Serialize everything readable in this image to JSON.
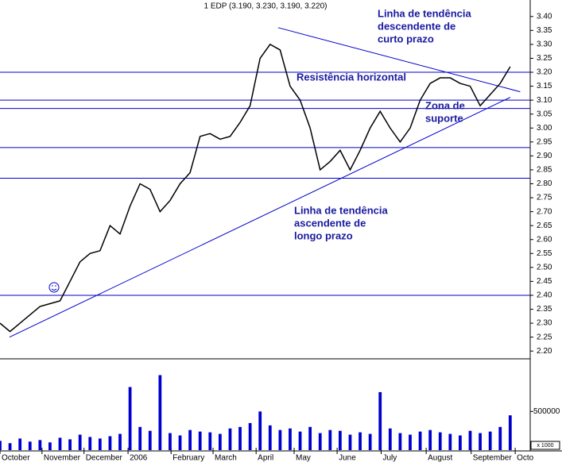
{
  "chart_data": {
    "type": "line",
    "title": "1 EDP (3.190, 3.230, 3.190, 3.220)",
    "color": "#000000",
    "values": [
      2.3,
      2.27,
      2.3,
      2.33,
      2.36,
      2.37,
      2.38,
      2.45,
      2.52,
      2.55,
      2.56,
      2.65,
      2.62,
      2.72,
      2.8,
      2.78,
      2.7,
      2.74,
      2.8,
      2.84,
      2.97,
      2.98,
      2.96,
      2.97,
      3.02,
      3.08,
      3.25,
      3.3,
      3.28,
      3.15,
      3.1,
      3.0,
      2.85,
      2.88,
      2.92,
      2.85,
      2.92,
      3.0,
      3.06,
      3.0,
      2.95,
      3.0,
      3.1,
      3.16,
      3.18,
      3.18,
      3.16,
      3.15,
      3.08,
      3.12,
      3.16,
      3.22
    ],
    "volume": {
      "color": "#0000cc",
      "values": [
        120000,
        90000,
        150000,
        110000,
        130000,
        100000,
        160000,
        140000,
        200000,
        170000,
        150000,
        180000,
        210000,
        816000,
        300000,
        250000,
        970000,
        220000,
        190000,
        260000,
        240000,
        230000,
        210000,
        280000,
        300000,
        350000,
        500000,
        320000,
        260000,
        280000,
        240000,
        300000,
        220000,
        260000,
        250000,
        200000,
        230000,
        210000,
        750000,
        280000,
        220000,
        200000,
        240000,
        260000,
        230000,
        210000,
        190000,
        250000,
        220000,
        240000,
        300000,
        450000
      ],
      "ylim": [
        0,
        1150000
      ],
      "yticks": [
        500000
      ],
      "unit_note": "x 1000"
    },
    "xlim": [
      0,
      53
    ],
    "xticks": [
      {
        "value": 0,
        "label": "October"
      },
      {
        "value": 4.2,
        "label": "November"
      },
      {
        "value": 8.4,
        "label": "December"
      },
      {
        "value": 12.8,
        "label": "2006"
      },
      {
        "value": 17.1,
        "label": "February"
      },
      {
        "value": 21.3,
        "label": "March"
      },
      {
        "value": 25.6,
        "label": "April"
      },
      {
        "value": 29.4,
        "label": "May"
      },
      {
        "value": 33.7,
        "label": "June"
      },
      {
        "value": 38.1,
        "label": "July"
      },
      {
        "value": 42.6,
        "label": "August"
      },
      {
        "value": 47.1,
        "label": "September"
      },
      {
        "value": 51.5,
        "label": "Octo"
      }
    ],
    "ylim": [
      2.175,
      3.425
    ],
    "yticks": [
      {
        "value": 3.4,
        "label": "3.40"
      },
      {
        "value": 3.35,
        "label": "3.35"
      },
      {
        "value": 3.3,
        "label": "3.30"
      },
      {
        "value": 3.25,
        "label": "3.25"
      },
      {
        "value": 3.2,
        "label": "3.20"
      },
      {
        "value": 3.15,
        "label": "3.15"
      },
      {
        "value": 3.1,
        "label": "3.10"
      },
      {
        "value": 3.05,
        "label": "3.05"
      },
      {
        "value": 3.0,
        "label": "3.00"
      },
      {
        "value": 2.95,
        "label": "2.95"
      },
      {
        "value": 2.9,
        "label": "2.90"
      },
      {
        "value": 2.85,
        "label": "2.85"
      },
      {
        "value": 2.8,
        "label": "2.80"
      },
      {
        "value": 2.75,
        "label": "2.75"
      },
      {
        "value": 2.7,
        "label": "2.70"
      },
      {
        "value": 2.65,
        "label": "2.65"
      },
      {
        "value": 2.6,
        "label": "2.60"
      },
      {
        "value": 2.55,
        "label": "2.55"
      },
      {
        "value": 2.5,
        "label": "2.50"
      },
      {
        "value": 2.45,
        "label": "2.45"
      },
      {
        "value": 2.4,
        "label": "2.40"
      },
      {
        "value": 2.35,
        "label": "2.35"
      },
      {
        "value": 2.3,
        "label": "2.30"
      },
      {
        "value": 2.25,
        "label": "2.25"
      },
      {
        "value": 2.2,
        "label": "2.20"
      }
    ],
    "hlines": [
      3.2,
      3.1,
      3.07,
      2.93,
      2.82,
      2.4
    ],
    "line_color": "#0000cc",
    "trendlines": [
      {
        "x": [
          27.8,
          52
        ],
        "y": [
          3.36,
          3.13
        ]
      },
      {
        "x": [
          0.95,
          51
        ],
        "y": [
          2.25,
          3.11
        ]
      }
    ],
    "annotations": [
      {
        "lines": [
          "Linha de tendência",
          "descendente de",
          "curto prazo"
        ]
      },
      {
        "lines": [
          "Resistência horizontal"
        ]
      },
      {
        "lines": [
          "Zona de",
          "suporte"
        ]
      },
      {
        "lines": [
          "Linha de tendência",
          "ascendente de",
          "longo prazo"
        ]
      }
    ]
  }
}
